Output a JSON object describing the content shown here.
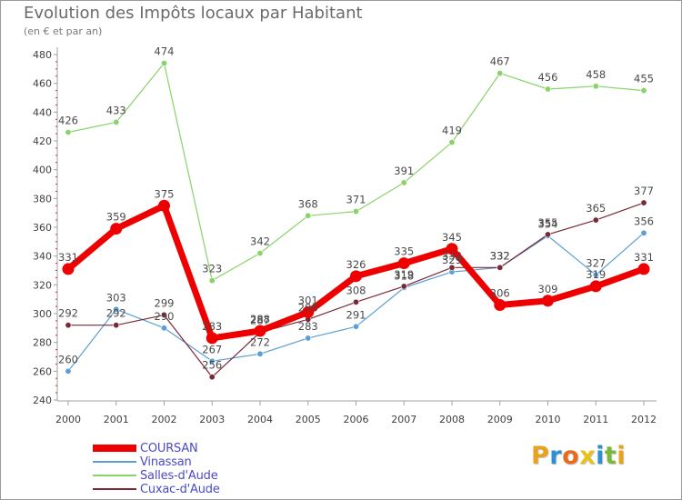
{
  "title": "Evolution des Impôts locaux par Habitant",
  "subtitle": "(en € et par an)",
  "colors": {
    "COURSAN": "#ee0000",
    "Vinassan": "#5b9fd3",
    "Salles-d'Aude": "#88d36a",
    "Cuxac-d'Aude": "#7a2a36",
    "axis": "#a0a0a0",
    "tick_text": "#404040",
    "legend_text": "#4a4acb",
    "label_text": "#4a4a4a"
  },
  "logo": {
    "text": "Proxiti",
    "letters": [
      "P",
      "r",
      "o",
      "x",
      "i",
      "t",
      "i"
    ],
    "letter_colors": [
      "#e8a21c",
      "#2f8fd3",
      "#e86a1c",
      "#e8c21c",
      "#2f8fd3",
      "#79b83a",
      "#e8a21c"
    ]
  },
  "chart_data": {
    "type": "line",
    "title": "Evolution des Impôts locaux par Habitant",
    "subtitle": "(en € et par an)",
    "xlabel": "",
    "ylabel": "",
    "x": [
      "2000",
      "2001",
      "2002",
      "2003",
      "2004",
      "2005",
      "2006",
      "2007",
      "2008",
      "2009",
      "2010",
      "2011",
      "2012"
    ],
    "ylim": [
      240,
      480
    ],
    "yticks": [
      240,
      260,
      280,
      300,
      320,
      340,
      360,
      380,
      400,
      420,
      440,
      460,
      480
    ],
    "grid": false,
    "legend_position": "bottom-left",
    "series": [
      {
        "name": "Vinassan",
        "values": [
          260,
          303,
          290,
          267,
          272,
          283,
          291,
          318,
          329,
          332,
          354,
          327,
          356
        ],
        "labels": [
          "260",
          "303",
          "290",
          "267",
          "272",
          "283",
          "291",
          "318",
          "329",
          "332",
          "354",
          "327",
          "356"
        ]
      },
      {
        "name": "Salles-d'Aude",
        "values": [
          426,
          433,
          474,
          323,
          342,
          368,
          371,
          391,
          419,
          467,
          456,
          458,
          455
        ],
        "labels": [
          "426",
          "433",
          "474",
          "323",
          "342",
          "368",
          "371",
          "391",
          "419",
          "467",
          "456",
          "458",
          "455"
        ]
      },
      {
        "name": "Cuxac-d'Aude",
        "values": [
          292,
          292,
          299,
          256,
          287,
          296,
          308,
          319,
          332,
          332,
          355,
          365,
          377
        ],
        "labels": [
          "292",
          "292",
          "299",
          "256",
          "287",
          "296",
          "308",
          "319",
          "332",
          "332",
          "355",
          "365",
          "377"
        ]
      },
      {
        "name": "COURSAN",
        "values": [
          331,
          359,
          375,
          283,
          288,
          301,
          326,
          335,
          345,
          306,
          309,
          319,
          331
        ],
        "labels": [
          "331",
          "359",
          "375",
          "283",
          "288",
          "301",
          "326",
          "335",
          "345",
          "306",
          "309",
          "319",
          "331"
        ]
      }
    ],
    "legend": [
      "COURSAN",
      "Vinassan",
      "Salles-d'Aude",
      "Cuxac-d'Aude"
    ]
  }
}
